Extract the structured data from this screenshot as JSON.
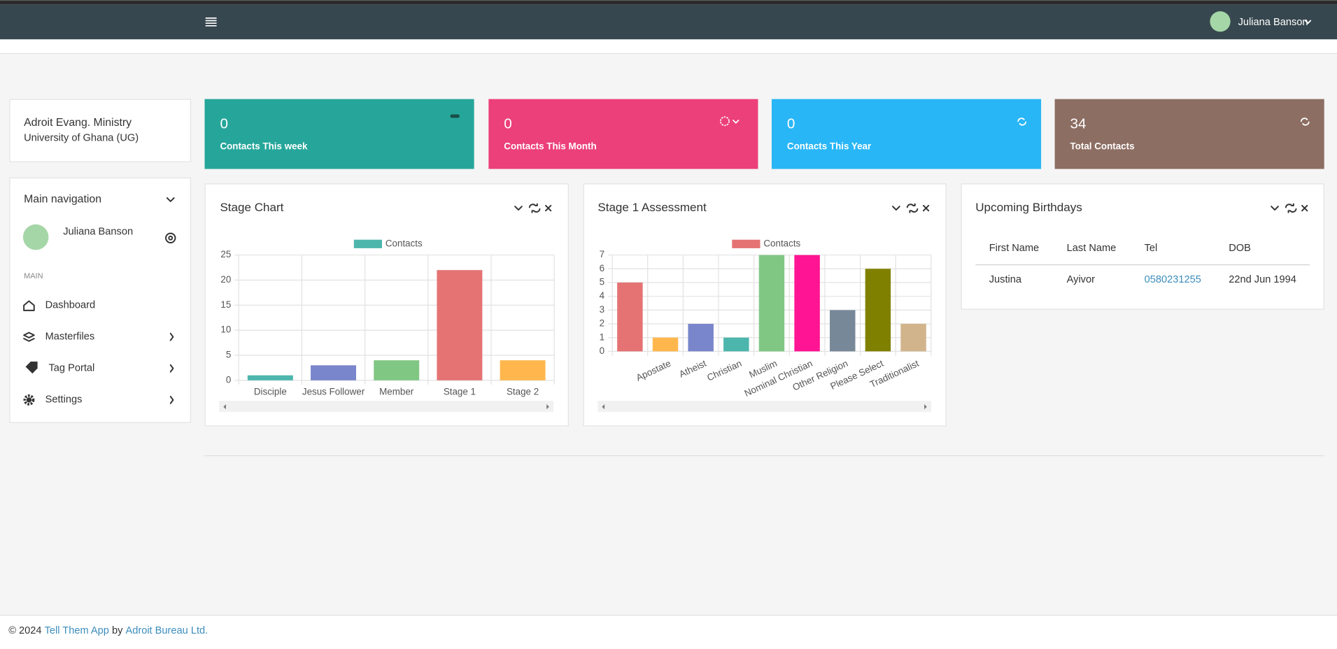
{
  "header": {
    "user": "Juliana Banson"
  },
  "org": {
    "name": "Adroit Evang. Ministry",
    "unit": "University of Ghana (UG)"
  },
  "nav": {
    "title": "Main navigation",
    "user": "Juliana Banson",
    "section": "MAIN",
    "items": [
      "Dashboard",
      "Masterfiles",
      "Tag Portal",
      "Settings"
    ]
  },
  "stats": [
    {
      "value": 0,
      "label": "Contacts This week",
      "color": "#26a69a"
    },
    {
      "value": 0,
      "label": "Contacts This Month",
      "color": "#ec407a"
    },
    {
      "value": 0,
      "label": "Contacts This Year",
      "color": "#29b6f6"
    },
    {
      "value": 34,
      "label": "Total Contacts",
      "color": "#8d6e63"
    }
  ],
  "charts": [
    {
      "type": "bar",
      "title": "Stage Chart",
      "categories": [
        "Disciple",
        "Jesus Follower",
        "Member",
        "Stage 1",
        "Stage 2"
      ],
      "series": [
        {
          "name": "Contacts",
          "color": "#4db6ac",
          "values": [
            1,
            3,
            4,
            22,
            4
          ],
          "colors": [
            "#4db6ac",
            "#7986cb",
            "#81c784",
            "#e57373",
            "#ffb74d"
          ]
        }
      ],
      "ylim": [
        0,
        25
      ],
      "yticks": [
        0,
        5,
        10,
        15,
        20,
        25
      ],
      "grid": true
    },
    {
      "type": "bar",
      "title": "Stage 1 Assessment",
      "categories": [
        null,
        "Apostate",
        "Atheist",
        "Christian",
        "Muslim",
        "Nominal Christian",
        "Other Religion",
        "Please Select",
        "Traditionalist"
      ],
      "series": [
        {
          "name": "Contacts",
          "color": "#e57373",
          "values": [
            5,
            1,
            2,
            1,
            7,
            7,
            3,
            6,
            2
          ],
          "colors": [
            "#e57373",
            "#ffb74d",
            "#7986cb",
            "#4db6ac",
            "#81c784",
            "#ff1493",
            "#778899",
            "#808000",
            "#d2b48c"
          ]
        }
      ],
      "ylim": [
        0,
        7
      ],
      "yticks": [
        0,
        1,
        2,
        3,
        4,
        5,
        6,
        7
      ],
      "grid": true
    }
  ],
  "birthdays": {
    "title": "Upcoming Birthdays",
    "columns": [
      "First Name",
      "Last Name",
      "Tel",
      "DOB"
    ],
    "rows": [
      [
        "Justina",
        "Ayivor",
        "0580231255",
        "22nd Jun 1994"
      ]
    ]
  },
  "footer": {
    "copyright": "© 2024",
    "app": "Tell Them App",
    "by": "by",
    "company": "Adroit Bureau Ltd."
  }
}
